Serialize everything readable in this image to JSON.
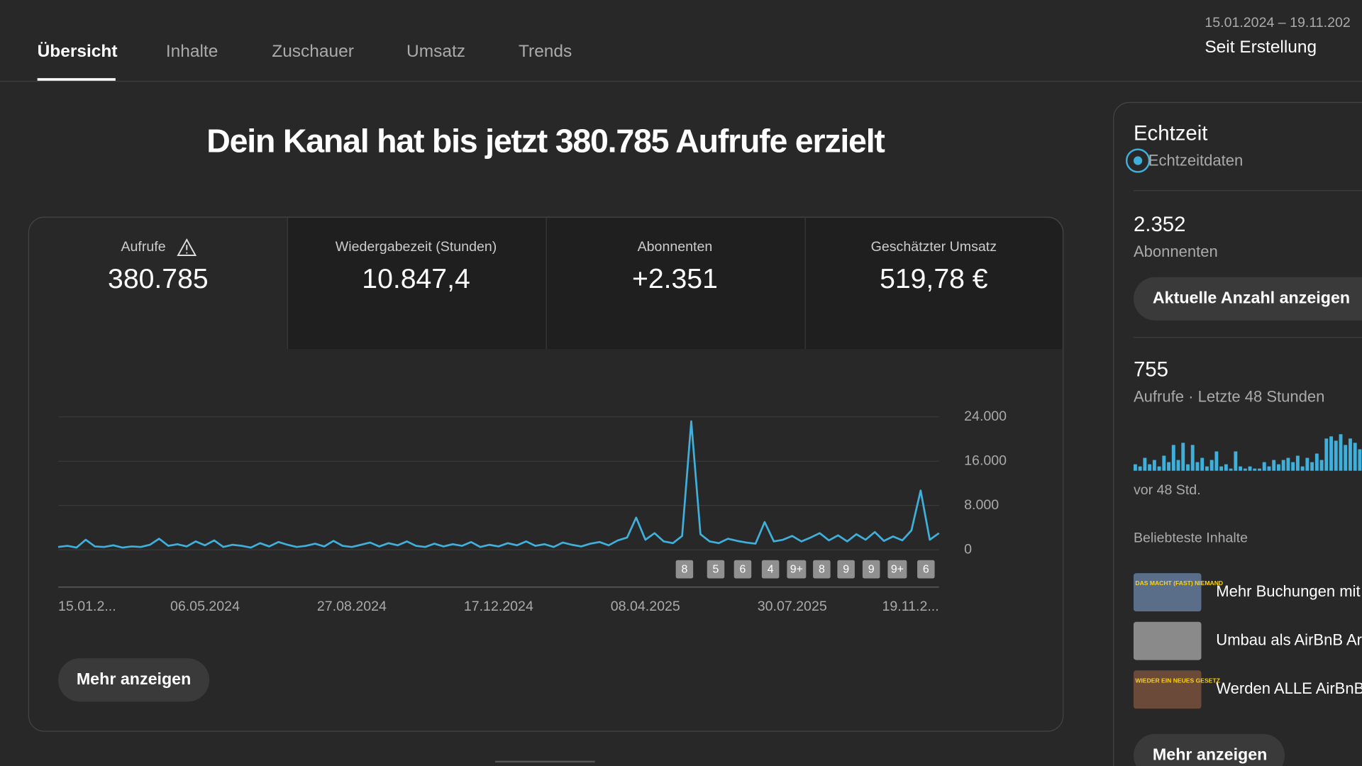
{
  "tabs": [
    "Übersicht",
    "Inhalte",
    "Zuschauer",
    "Umsatz",
    "Trends"
  ],
  "date_range": "15.01.2024 – 19.11.202",
  "period": "Seit Erstellung",
  "headline": "Dein Kanal hat bis jetzt 380.785 Aufrufe erzielt",
  "metrics": [
    {
      "label": "Aufrufe",
      "value": "380.785"
    },
    {
      "label": "Wiedergabezeit (Stunden)",
      "value": "10.847,4"
    },
    {
      "label": "Abonnenten",
      "value": "+2.351"
    },
    {
      "label": "Geschätzter Umsatz",
      "value": "519,78 €"
    }
  ],
  "chart_data": {
    "type": "line",
    "color": "#3fb0dc",
    "grid": true,
    "ylim": [
      0,
      24000
    ],
    "yticks": [
      0,
      {
        "value": 8000,
        "label": "8.000"
      },
      {
        "value": 16000,
        "label": "16.000"
      },
      {
        "value": 24000,
        "label": "24.000"
      }
    ],
    "categories": [
      "15.01.2...",
      null,
      null,
      null,
      null,
      null,
      null,
      null,
      null,
      null,
      null,
      null,
      null,
      null,
      null,
      null,
      "06.05.2024",
      null,
      null,
      null,
      null,
      null,
      null,
      null,
      null,
      null,
      null,
      null,
      null,
      null,
      null,
      null,
      "27.08.2024",
      null,
      null,
      null,
      null,
      null,
      null,
      null,
      null,
      null,
      null,
      null,
      null,
      null,
      null,
      null,
      "17.12.2024",
      null,
      null,
      null,
      null,
      null,
      null,
      null,
      null,
      null,
      null,
      null,
      null,
      null,
      null,
      null,
      "08.04.2025",
      null,
      null,
      null,
      null,
      null,
      null,
      null,
      null,
      null,
      null,
      null,
      null,
      null,
      null,
      null,
      "30.07.2025",
      null,
      null,
      null,
      null,
      null,
      null,
      null,
      null,
      null,
      null,
      null,
      null,
      null,
      null,
      null,
      "19.11.2..."
    ],
    "values": [
      500,
      700,
      400,
      1800,
      600,
      500,
      800,
      400,
      600,
      500,
      900,
      2000,
      700,
      1000,
      600,
      1500,
      800,
      1700,
      500,
      900,
      700,
      400,
      1200,
      600,
      1400,
      900,
      500,
      700,
      1100,
      600,
      1600,
      700,
      500,
      900,
      1300,
      600,
      1200,
      800,
      1500,
      700,
      500,
      1100,
      600,
      1000,
      700,
      1400,
      500,
      900,
      600,
      1200,
      800,
      1500,
      700,
      1000,
      500,
      1300,
      900,
      600,
      1100,
      1400,
      800,
      1700,
      2200,
      5800,
      1800,
      3000,
      1500,
      1200,
      2500,
      23200,
      2800,
      1500,
      1200,
      2000,
      1600,
      1300,
      1100,
      5000,
      1500,
      1800,
      2500,
      1500,
      2200,
      3000,
      1700,
      2600,
      1500,
      2800,
      1800,
      3200,
      1600,
      2400,
      1700,
      3500,
      10700,
      1800,
      3000
    ],
    "annotations": [
      "8",
      "5",
      "6",
      "4",
      "9+",
      "8",
      "9",
      "9",
      "9+",
      "6"
    ]
  },
  "show_more": "Mehr anzeigen",
  "sidebar": {
    "title": "Echtzeit",
    "live": "Echtzeitdaten",
    "subscribers": "2.352",
    "subscribers_label": "Abonnenten",
    "count_button": "Aktuelle Anzahl anzeigen",
    "views": "755",
    "views_label": "Aufrufe · Letzte 48 Stunden",
    "bars": [
      3,
      2,
      6,
      3,
      5,
      2,
      7,
      4,
      12,
      5,
      13,
      3,
      12,
      4,
      6,
      2,
      5,
      9,
      2,
      3,
      1,
      9,
      2,
      1,
      2,
      1,
      1,
      4,
      2,
      5,
      3,
      5,
      6,
      4,
      7,
      2,
      6,
      4,
      8,
      5,
      15,
      16,
      14,
      17,
      12,
      15,
      13,
      10
    ],
    "bars_label": "vor 48 Std.",
    "top_title": "Beliebteste Inhalte",
    "top": [
      {
        "title": "Mehr Buchungen mit",
        "thumb": "DAS MACHT (FAST) NIEMAND"
      },
      {
        "title": "Umbau als AirBnB Ar",
        "thumb": null
      },
      {
        "title": "Werden ALLE AirBnB",
        "thumb": "WIEDER EIN NEUES GESETZ"
      }
    ],
    "show_more": "Mehr anzeigen"
  }
}
